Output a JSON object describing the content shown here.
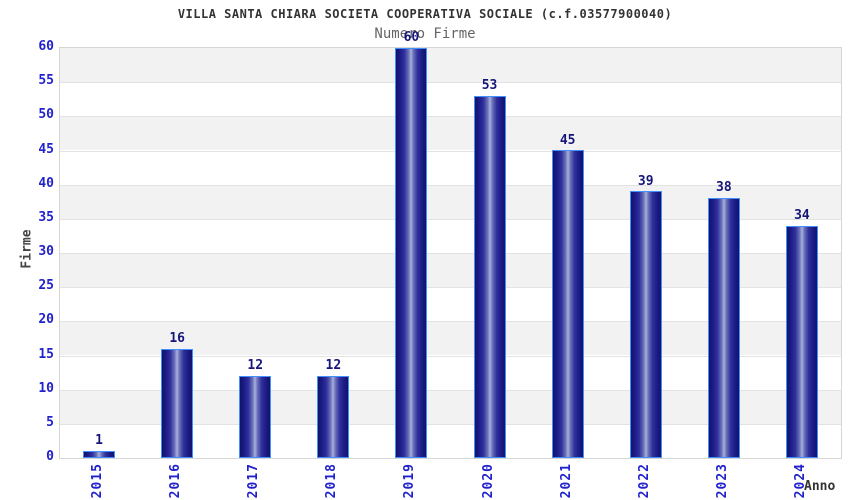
{
  "header": {
    "title": "VILLA SANTA CHIARA SOCIETA COOPERATIVA SOCIALE (c.f.03577900040)",
    "subtitle": "Numero Firme"
  },
  "chart_data": {
    "type": "bar",
    "title": "VILLA SANTA CHIARA SOCIETA COOPERATIVA SOCIALE (c.f.03577900040)",
    "subtitle": "Numero Firme",
    "categories": [
      "2015",
      "2016",
      "2017",
      "2018",
      "2019",
      "2020",
      "2021",
      "2022",
      "2023",
      "2024"
    ],
    "values": [
      1,
      16,
      12,
      12,
      60,
      53,
      45,
      39,
      38,
      34
    ],
    "xlabel": "Anno",
    "ylabel": "Firme",
    "ylim": [
      0,
      60
    ],
    "ytick_step": 5,
    "yticks": [
      0,
      5,
      10,
      15,
      20,
      25,
      30,
      35,
      40,
      45,
      50,
      55,
      60
    ],
    "legend": "none",
    "grid": "horizontal-bands-alternating",
    "colors": {
      "band_dark": "#f2f2f2",
      "band_light": "#ffffff",
      "gridline": "#e3e3e3",
      "plot_border": "#d6d6d6",
      "bar_edge": "#121268",
      "bar_center": "#a9b0d8",
      "bar_border": "#4090ff",
      "tick_text": "#2222cc",
      "value_text": "#16167a",
      "title_text": "#333333",
      "subtitle_text": "#666666"
    }
  }
}
